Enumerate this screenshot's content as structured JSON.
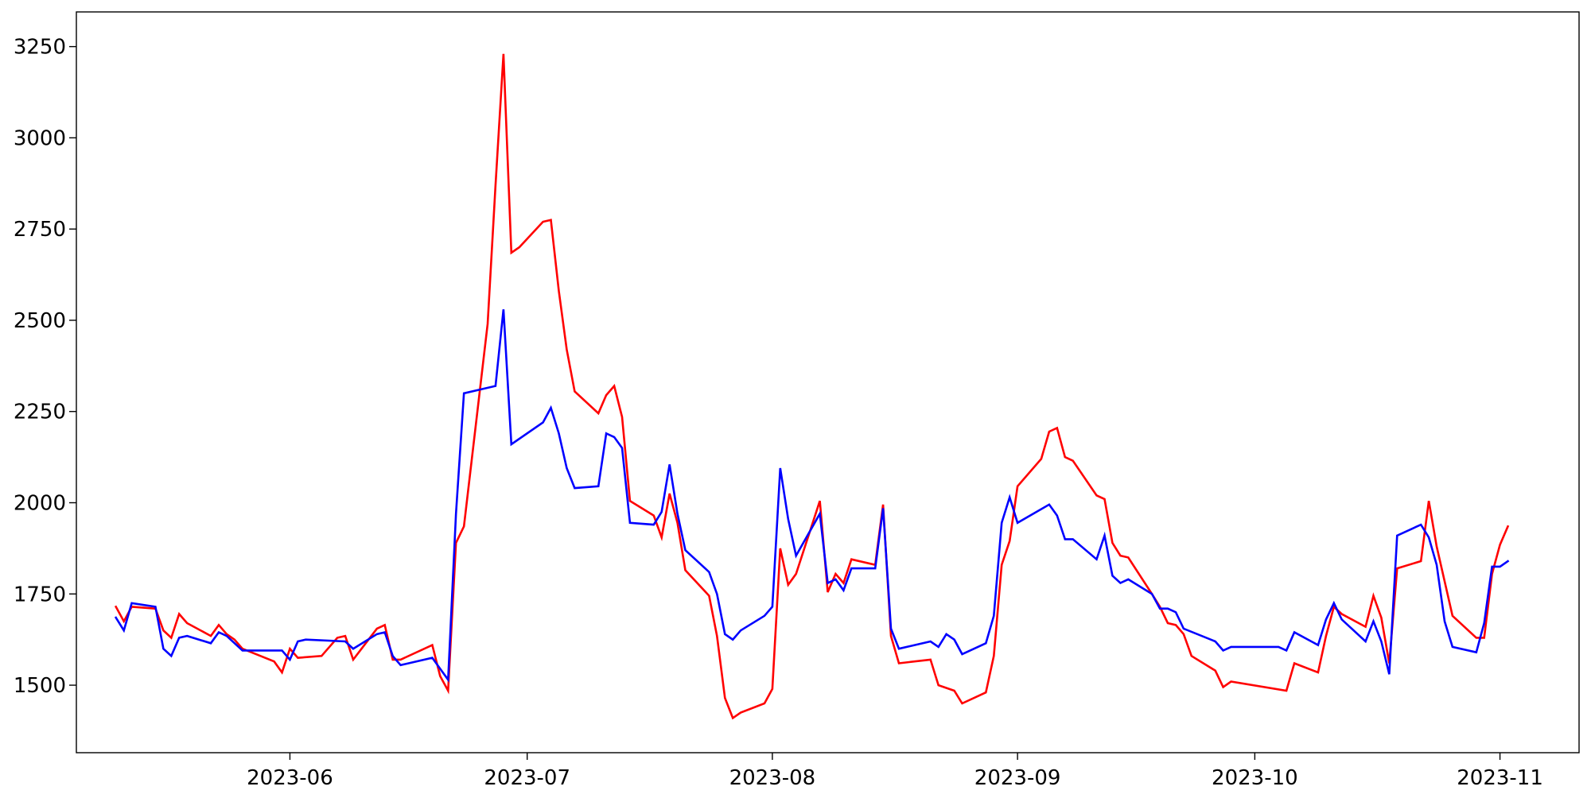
{
  "chart_data": {
    "type": "line",
    "title": "",
    "xlabel": "",
    "ylabel": "",
    "x_axis": {
      "type": "date",
      "range": [
        "2023-05-05",
        "2023-11-11"
      ],
      "ticks": [
        {
          "date": "2023-06-01",
          "label": "2023-06"
        },
        {
          "date": "2023-07-01",
          "label": "2023-07"
        },
        {
          "date": "2023-08-01",
          "label": "2023-08"
        },
        {
          "date": "2023-09-01",
          "label": "2023-09"
        },
        {
          "date": "2023-10-01",
          "label": "2023-10"
        },
        {
          "date": "2023-11-01",
          "label": "2023-11"
        }
      ]
    },
    "y_axis": {
      "range": [
        1315,
        3345
      ],
      "ticks": [
        1500,
        1750,
        2000,
        2250,
        2500,
        2750,
        3000,
        3250
      ]
    },
    "grid": false,
    "legend": "none",
    "series": [
      {
        "color": "#ff0000",
        "points": [
          [
            "2023-05-10",
            1715
          ],
          [
            "2023-05-11",
            1675
          ],
          [
            "2023-05-12",
            1715
          ],
          [
            "2023-05-15",
            1710
          ],
          [
            "2023-05-16",
            1650
          ],
          [
            "2023-05-17",
            1630
          ],
          [
            "2023-05-18",
            1695
          ],
          [
            "2023-05-19",
            1670
          ],
          [
            "2023-05-22",
            1635
          ],
          [
            "2023-05-23",
            1665
          ],
          [
            "2023-05-24",
            1640
          ],
          [
            "2023-05-25",
            1625
          ],
          [
            "2023-05-26",
            1600
          ],
          [
            "2023-05-30",
            1565
          ],
          [
            "2023-05-31",
            1535
          ],
          [
            "2023-06-01",
            1600
          ],
          [
            "2023-06-02",
            1575
          ],
          [
            "2023-06-05",
            1580
          ],
          [
            "2023-06-07",
            1630
          ],
          [
            "2023-06-08",
            1635
          ],
          [
            "2023-06-09",
            1570
          ],
          [
            "2023-06-12",
            1655
          ],
          [
            "2023-06-13",
            1665
          ],
          [
            "2023-06-14",
            1570
          ],
          [
            "2023-06-15",
            1570
          ],
          [
            "2023-06-19",
            1610
          ],
          [
            "2023-06-20",
            1525
          ],
          [
            "2023-06-21",
            1485
          ],
          [
            "2023-06-22",
            1890
          ],
          [
            "2023-06-23",
            1935
          ],
          [
            "2023-06-26",
            2490
          ],
          [
            "2023-06-27",
            2870
          ],
          [
            "2023-06-28",
            3230
          ],
          [
            "2023-06-29",
            2685
          ],
          [
            "2023-06-30",
            2700
          ],
          [
            "2023-07-03",
            2770
          ],
          [
            "2023-07-04",
            2775
          ],
          [
            "2023-07-05",
            2580
          ],
          [
            "2023-07-06",
            2420
          ],
          [
            "2023-07-07",
            2305
          ],
          [
            "2023-07-10",
            2245
          ],
          [
            "2023-07-11",
            2295
          ],
          [
            "2023-07-12",
            2320
          ],
          [
            "2023-07-13",
            2235
          ],
          [
            "2023-07-14",
            2005
          ],
          [
            "2023-07-17",
            1965
          ],
          [
            "2023-07-18",
            1905
          ],
          [
            "2023-07-19",
            2025
          ],
          [
            "2023-07-20",
            1945
          ],
          [
            "2023-07-21",
            1815
          ],
          [
            "2023-07-24",
            1745
          ],
          [
            "2023-07-25",
            1635
          ],
          [
            "2023-07-26",
            1465
          ],
          [
            "2023-07-27",
            1410
          ],
          [
            "2023-07-28",
            1425
          ],
          [
            "2023-07-31",
            1450
          ],
          [
            "2023-08-01",
            1490
          ],
          [
            "2023-08-02",
            1875
          ],
          [
            "2023-08-03",
            1775
          ],
          [
            "2023-08-04",
            1805
          ],
          [
            "2023-08-07",
            2005
          ],
          [
            "2023-08-08",
            1755
          ],
          [
            "2023-08-09",
            1805
          ],
          [
            "2023-08-10",
            1780
          ],
          [
            "2023-08-11",
            1845
          ],
          [
            "2023-08-14",
            1830
          ],
          [
            "2023-08-15",
            1995
          ],
          [
            "2023-08-16",
            1635
          ],
          [
            "2023-08-17",
            1560
          ],
          [
            "2023-08-21",
            1570
          ],
          [
            "2023-08-22",
            1500
          ],
          [
            "2023-08-24",
            1485
          ],
          [
            "2023-08-25",
            1450
          ],
          [
            "2023-08-28",
            1480
          ],
          [
            "2023-08-29",
            1580
          ],
          [
            "2023-08-30",
            1830
          ],
          [
            "2023-08-31",
            1895
          ],
          [
            "2023-09-01",
            2045
          ],
          [
            "2023-09-04",
            2120
          ],
          [
            "2023-09-05",
            2195
          ],
          [
            "2023-09-06",
            2205
          ],
          [
            "2023-09-07",
            2125
          ],
          [
            "2023-09-08",
            2115
          ],
          [
            "2023-09-11",
            2020
          ],
          [
            "2023-09-12",
            2010
          ],
          [
            "2023-09-13",
            1890
          ],
          [
            "2023-09-14",
            1855
          ],
          [
            "2023-09-15",
            1850
          ],
          [
            "2023-09-18",
            1750
          ],
          [
            "2023-09-19",
            1715
          ],
          [
            "2023-09-20",
            1670
          ],
          [
            "2023-09-21",
            1665
          ],
          [
            "2023-09-22",
            1640
          ],
          [
            "2023-09-23",
            1580
          ],
          [
            "2023-09-26",
            1540
          ],
          [
            "2023-09-27",
            1495
          ],
          [
            "2023-09-28",
            1510
          ],
          [
            "2023-10-05",
            1485
          ],
          [
            "2023-10-06",
            1560
          ],
          [
            "2023-10-09",
            1535
          ],
          [
            "2023-10-10",
            1635
          ],
          [
            "2023-10-11",
            1715
          ],
          [
            "2023-10-12",
            1695
          ],
          [
            "2023-10-15",
            1660
          ],
          [
            "2023-10-16",
            1745
          ],
          [
            "2023-10-17",
            1685
          ],
          [
            "2023-10-18",
            1560
          ],
          [
            "2023-10-19",
            1820
          ],
          [
            "2023-10-22",
            1840
          ],
          [
            "2023-10-23",
            2005
          ],
          [
            "2023-10-24",
            1880
          ],
          [
            "2023-10-26",
            1690
          ],
          [
            "2023-10-29",
            1630
          ],
          [
            "2023-10-30",
            1630
          ],
          [
            "2023-10-31",
            1805
          ],
          [
            "2023-11-01",
            1885
          ],
          [
            "2023-11-02",
            1935
          ]
        ]
      },
      {
        "color": "#0000ff",
        "points": [
          [
            "2023-05-10",
            1685
          ],
          [
            "2023-05-11",
            1650
          ],
          [
            "2023-05-12",
            1725
          ],
          [
            "2023-05-15",
            1715
          ],
          [
            "2023-05-16",
            1600
          ],
          [
            "2023-05-17",
            1580
          ],
          [
            "2023-05-18",
            1630
          ],
          [
            "2023-05-19",
            1635
          ],
          [
            "2023-05-22",
            1615
          ],
          [
            "2023-05-23",
            1645
          ],
          [
            "2023-05-24",
            1635
          ],
          [
            "2023-05-26",
            1595
          ],
          [
            "2023-05-31",
            1595
          ],
          [
            "2023-06-01",
            1570
          ],
          [
            "2023-06-02",
            1620
          ],
          [
            "2023-06-03",
            1625
          ],
          [
            "2023-06-08",
            1620
          ],
          [
            "2023-06-09",
            1600
          ],
          [
            "2023-06-12",
            1640
          ],
          [
            "2023-06-13",
            1645
          ],
          [
            "2023-06-14",
            1580
          ],
          [
            "2023-06-15",
            1555
          ],
          [
            "2023-06-19",
            1575
          ],
          [
            "2023-06-20",
            1545
          ],
          [
            "2023-06-21",
            1515
          ],
          [
            "2023-06-22",
            1970
          ],
          [
            "2023-06-23",
            2300
          ],
          [
            "2023-06-27",
            2320
          ],
          [
            "2023-06-28",
            2530
          ],
          [
            "2023-06-29",
            2160
          ],
          [
            "2023-07-03",
            2220
          ],
          [
            "2023-07-04",
            2260
          ],
          [
            "2023-07-05",
            2190
          ],
          [
            "2023-07-06",
            2095
          ],
          [
            "2023-07-07",
            2040
          ],
          [
            "2023-07-10",
            2045
          ],
          [
            "2023-07-11",
            2190
          ],
          [
            "2023-07-12",
            2180
          ],
          [
            "2023-07-13",
            2150
          ],
          [
            "2023-07-14",
            1945
          ],
          [
            "2023-07-17",
            1940
          ],
          [
            "2023-07-18",
            1975
          ],
          [
            "2023-07-19",
            2105
          ],
          [
            "2023-07-20",
            1970
          ],
          [
            "2023-07-21",
            1870
          ],
          [
            "2023-07-24",
            1810
          ],
          [
            "2023-07-25",
            1750
          ],
          [
            "2023-07-26",
            1640
          ],
          [
            "2023-07-27",
            1625
          ],
          [
            "2023-07-28",
            1650
          ],
          [
            "2023-07-31",
            1690
          ],
          [
            "2023-08-01",
            1715
          ],
          [
            "2023-08-02",
            2095
          ],
          [
            "2023-08-03",
            1955
          ],
          [
            "2023-08-04",
            1855
          ],
          [
            "2023-08-07",
            1970
          ],
          [
            "2023-08-08",
            1780
          ],
          [
            "2023-08-09",
            1790
          ],
          [
            "2023-08-10",
            1760
          ],
          [
            "2023-08-11",
            1820
          ],
          [
            "2023-08-14",
            1820
          ],
          [
            "2023-08-15",
            1985
          ],
          [
            "2023-08-16",
            1655
          ],
          [
            "2023-08-17",
            1600
          ],
          [
            "2023-08-21",
            1620
          ],
          [
            "2023-08-22",
            1605
          ],
          [
            "2023-08-23",
            1640
          ],
          [
            "2023-08-24",
            1625
          ],
          [
            "2023-08-25",
            1585
          ],
          [
            "2023-08-28",
            1615
          ],
          [
            "2023-08-29",
            1690
          ],
          [
            "2023-08-30",
            1945
          ],
          [
            "2023-08-31",
            2015
          ],
          [
            "2023-09-01",
            1945
          ],
          [
            "2023-09-05",
            1995
          ],
          [
            "2023-09-06",
            1965
          ],
          [
            "2023-09-07",
            1900
          ],
          [
            "2023-09-08",
            1900
          ],
          [
            "2023-09-11",
            1845
          ],
          [
            "2023-09-12",
            1910
          ],
          [
            "2023-09-13",
            1800
          ],
          [
            "2023-09-14",
            1780
          ],
          [
            "2023-09-15",
            1790
          ],
          [
            "2023-09-18",
            1750
          ],
          [
            "2023-09-19",
            1710
          ],
          [
            "2023-09-20",
            1710
          ],
          [
            "2023-09-21",
            1700
          ],
          [
            "2023-09-22",
            1655
          ],
          [
            "2023-09-26",
            1620
          ],
          [
            "2023-09-27",
            1595
          ],
          [
            "2023-09-28",
            1605
          ],
          [
            "2023-10-04",
            1605
          ],
          [
            "2023-10-05",
            1595
          ],
          [
            "2023-10-06",
            1645
          ],
          [
            "2023-10-09",
            1610
          ],
          [
            "2023-10-10",
            1680
          ],
          [
            "2023-10-11",
            1725
          ],
          [
            "2023-10-12",
            1680
          ],
          [
            "2023-10-15",
            1620
          ],
          [
            "2023-10-16",
            1675
          ],
          [
            "2023-10-17",
            1620
          ],
          [
            "2023-10-18",
            1530
          ],
          [
            "2023-10-19",
            1910
          ],
          [
            "2023-10-22",
            1940
          ],
          [
            "2023-10-23",
            1905
          ],
          [
            "2023-10-24",
            1830
          ],
          [
            "2023-10-25",
            1675
          ],
          [
            "2023-10-26",
            1605
          ],
          [
            "2023-10-29",
            1590
          ],
          [
            "2023-10-30",
            1670
          ],
          [
            "2023-10-31",
            1825
          ],
          [
            "2023-11-01",
            1825
          ],
          [
            "2023-11-02",
            1840
          ]
        ]
      }
    ]
  }
}
